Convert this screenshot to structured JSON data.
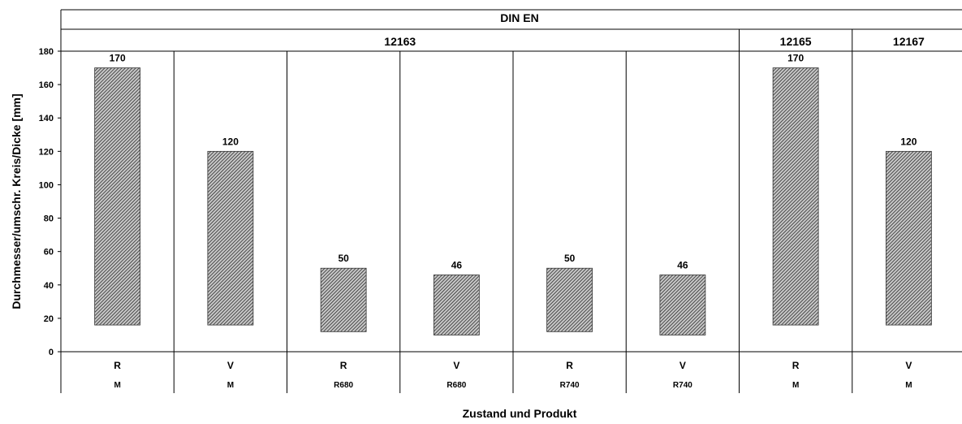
{
  "chart_data": {
    "type": "bar",
    "title": "DIN EN",
    "ylabel": "Durchmesser/umschr. Kreis/Dicke [mm]",
    "xlabel": "Zustand und Produkt",
    "ylim": [
      0,
      180
    ],
    "yticks": [
      0,
      20,
      40,
      60,
      80,
      100,
      120,
      140,
      160,
      180
    ],
    "standards": [
      {
        "label": "12163",
        "span": 6
      },
      {
        "label": "12165",
        "span": 1
      },
      {
        "label": "12167",
        "span": 1
      }
    ],
    "categories": [
      {
        "zustand": "R",
        "produkt": "M"
      },
      {
        "zustand": "V",
        "produkt": "M"
      },
      {
        "zustand": "R",
        "produkt": "R680"
      },
      {
        "zustand": "V",
        "produkt": "R680"
      },
      {
        "zustand": "R",
        "produkt": "R740"
      },
      {
        "zustand": "V",
        "produkt": "R740"
      },
      {
        "zustand": "R",
        "produkt": "M"
      },
      {
        "zustand": "V",
        "produkt": "M"
      }
    ],
    "series": [
      {
        "type": "floating-range",
        "low": [
          16,
          16,
          12,
          10,
          12,
          10,
          16,
          16
        ],
        "high": [
          170,
          120,
          50,
          46,
          50,
          46,
          170,
          120
        ],
        "labels": [
          "170",
          "120",
          "50",
          "46",
          "50",
          "46",
          "170",
          "120"
        ]
      }
    ],
    "pattern": "hatched",
    "bar_color": "#555555"
  }
}
